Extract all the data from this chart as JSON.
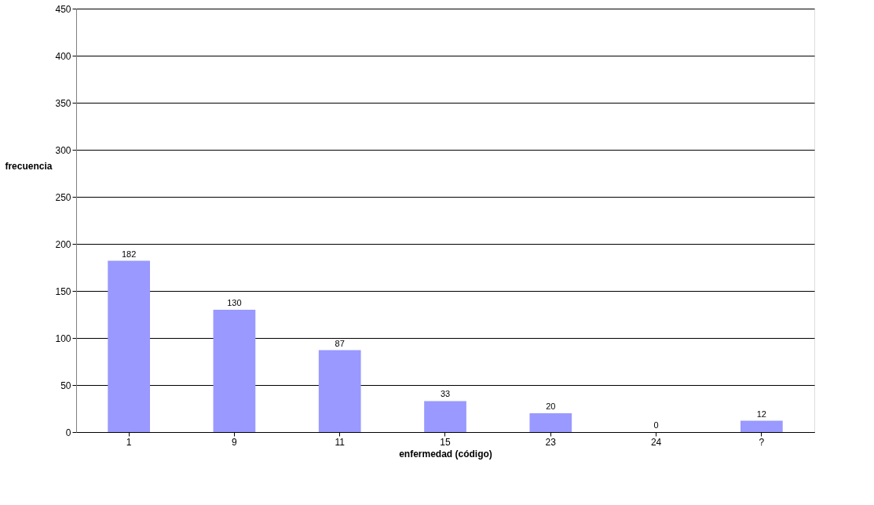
{
  "chart_data": {
    "type": "bar",
    "xlabel": "enfermedad (código)",
    "ylabel": "frecuencia",
    "categories": [
      "1",
      "9",
      "11",
      "15",
      "23",
      "24",
      "?"
    ],
    "values": [
      182,
      130,
      87,
      33,
      20,
      0,
      12
    ],
    "color": "#9999ff",
    "ylim": [
      0,
      450
    ],
    "yticks": [
      0,
      50,
      100,
      150,
      200,
      250,
      300,
      350,
      400,
      450
    ],
    "grid": "y",
    "data_labels": true
  }
}
